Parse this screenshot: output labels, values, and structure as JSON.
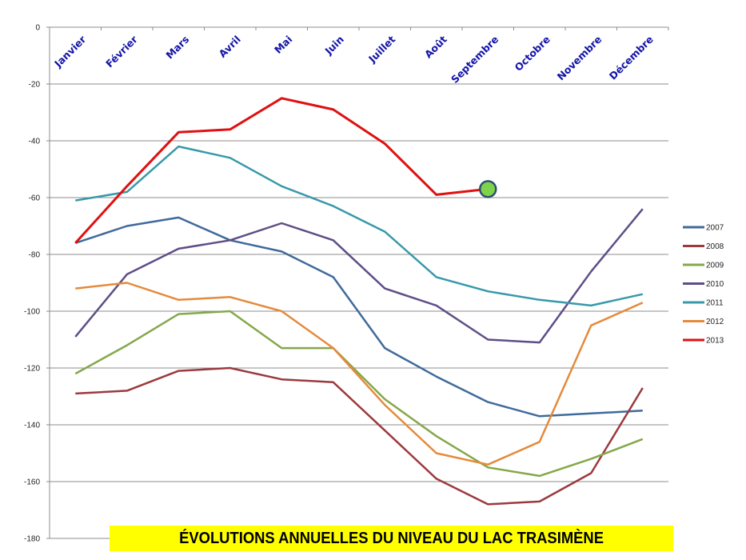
{
  "chart_data": {
    "type": "line",
    "title": "ÉVOLUTIONS ANNUELLES DU NIVEAU DU LAC TRASIMÈNE",
    "xlabel": "",
    "ylabel": "",
    "categories": [
      "Janvier",
      "Février",
      "Mars",
      "Avril",
      "Mai",
      "Juin",
      "Juillet",
      "Août",
      "Septembre",
      "Octobre",
      "Novembre",
      "Décembre"
    ],
    "ylim": [
      -180,
      0
    ],
    "yticks": [
      0,
      -20,
      -40,
      -60,
      -80,
      -100,
      -120,
      -140,
      -160,
      -180
    ],
    "ytick_labels": [
      "0",
      "-20",
      "-40",
      "-60",
      "-80",
      "-100",
      "-120",
      "-140",
      "-160",
      "-180"
    ],
    "grid": true,
    "legend_position": "right",
    "series": [
      {
        "name": "2007",
        "color": "#3f6a9c",
        "values": [
          -76,
          -70,
          -67,
          -75,
          -79,
          -88,
          -113,
          -123,
          -132,
          -137,
          -136,
          -135
        ]
      },
      {
        "name": "2008",
        "color": "#9b3a3e",
        "values": [
          -129,
          -128,
          -121,
          -120,
          -124,
          -125,
          -142,
          -159,
          -168,
          -167,
          -157,
          -127
        ]
      },
      {
        "name": "2009",
        "color": "#84a84a",
        "values": [
          -122,
          -112,
          -101,
          -100,
          -113,
          -113,
          -131,
          -144,
          -155,
          -158,
          -152,
          -145
        ]
      },
      {
        "name": "2010",
        "color": "#5e4e86",
        "values": [
          -109,
          -87,
          -78,
          -75,
          -69,
          -75,
          -92,
          -98,
          -110,
          -111,
          -86,
          -64
        ]
      },
      {
        "name": "2011",
        "color": "#3799a9",
        "values": [
          -61,
          -58,
          -42,
          -46,
          -56,
          -63,
          -72,
          -88,
          -93,
          -96,
          -98,
          -94
        ]
      },
      {
        "name": "2012",
        "color": "#e58a3c",
        "values": [
          -92,
          -90,
          -96,
          -95,
          -100,
          -113,
          -133,
          -150,
          -154,
          -146,
          -105,
          -97
        ]
      },
      {
        "name": "2013",
        "color": "#e01010",
        "values": [
          -76,
          -56,
          -37,
          -36,
          -25,
          -29,
          -41,
          -59,
          -57,
          null,
          null,
          null
        ]
      }
    ],
    "annotations": [
      {
        "type": "marker",
        "series": "2013",
        "category": "Septembre",
        "value": -57,
        "fill": "#7ed34a",
        "stroke": "#2d5070"
      }
    ]
  }
}
